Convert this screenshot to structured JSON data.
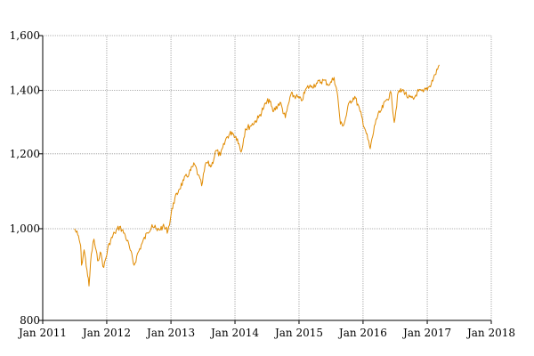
{
  "chart_data": {
    "type": "line",
    "title": "",
    "xlabel": "",
    "ylabel": "",
    "y_scale": "log",
    "ylim": [
      800,
      1600
    ],
    "xlim": [
      "2011-01-01",
      "2018-01-01"
    ],
    "grid": true,
    "colors": {
      "series": "#e08a00",
      "grid": "#999999",
      "axis": "#000000"
    },
    "x_ticks": [
      {
        "date": "2011-01-01",
        "label": "Jan 2011"
      },
      {
        "date": "2012-01-01",
        "label": "Jan 2012"
      },
      {
        "date": "2013-01-01",
        "label": "Jan 2013"
      },
      {
        "date": "2014-01-01",
        "label": "Jan 2014"
      },
      {
        "date": "2015-01-01",
        "label": "Jan 2015"
      },
      {
        "date": "2016-01-01",
        "label": "Jan 2016"
      },
      {
        "date": "2017-01-01",
        "label": "Jan 2017"
      },
      {
        "date": "2018-01-01",
        "label": "Jan 2018"
      }
    ],
    "y_ticks": [
      {
        "value": 800,
        "label": "800"
      },
      {
        "value": 1000,
        "label": "1,000"
      },
      {
        "value": 1200,
        "label": "1,200"
      },
      {
        "value": 1400,
        "label": "1,400"
      },
      {
        "value": 1600,
        "label": "1,600"
      }
    ],
    "series": [
      {
        "x": [
          "2011-07-01",
          "2011-07-20",
          "2011-08-05",
          "2011-08-10",
          "2011-08-25",
          "2011-09-10",
          "2011-09-22",
          "2011-10-05",
          "2011-10-20",
          "2011-11-10",
          "2011-11-25",
          "2011-12-15",
          "2012-01-15",
          "2012-02-15",
          "2012-03-15",
          "2012-04-15",
          "2012-05-10",
          "2012-06-05",
          "2012-06-20",
          "2012-07-20",
          "2012-08-20",
          "2012-09-15",
          "2012-10-15",
          "2012-11-15",
          "2012-12-15",
          "2013-01-15",
          "2013-02-15",
          "2013-03-15",
          "2013-04-15",
          "2013-05-15",
          "2013-06-05",
          "2013-06-25",
          "2013-07-20",
          "2013-08-20",
          "2013-09-15",
          "2013-10-10",
          "2013-11-15",
          "2013-12-15",
          "2014-01-15",
          "2014-02-05",
          "2014-03-01",
          "2014-04-01",
          "2014-05-15",
          "2014-06-15",
          "2014-07-15",
          "2014-08-05",
          "2014-09-15",
          "2014-10-15",
          "2014-11-15",
          "2014-12-15",
          "2015-01-15",
          "2015-02-15",
          "2015-03-15",
          "2015-04-15",
          "2015-05-20",
          "2015-06-25",
          "2015-07-20",
          "2015-08-10",
          "2015-08-25",
          "2015-09-15",
          "2015-10-15",
          "2015-11-15",
          "2015-12-15",
          "2016-01-15",
          "2016-02-11",
          "2016-03-15",
          "2016-04-15",
          "2016-05-15",
          "2016-06-10",
          "2016-06-27",
          "2016-07-20",
          "2016-08-20",
          "2016-09-15",
          "2016-10-15",
          "2016-11-05",
          "2016-12-10",
          "2017-01-15",
          "2017-02-15",
          "2017-03-10"
        ],
        "y": [
          1000,
          985,
          960,
          915,
          950,
          905,
          870,
          940,
          975,
          925,
          945,
          910,
          965,
          990,
          1005,
          985,
          955,
          915,
          935,
          965,
          990,
          1010,
          995,
          1005,
          995,
          1065,
          1100,
          1125,
          1145,
          1170,
          1140,
          1110,
          1175,
          1165,
          1210,
          1195,
          1250,
          1265,
          1245,
          1205,
          1275,
          1285,
          1310,
          1345,
          1370,
          1330,
          1360,
          1310,
          1385,
          1380,
          1365,
          1410,
          1415,
          1425,
          1435,
          1420,
          1445,
          1380,
          1290,
          1290,
          1360,
          1380,
          1330,
          1270,
          1215,
          1305,
          1335,
          1370,
          1390,
          1295,
          1395,
          1400,
          1375,
          1370,
          1395,
          1395,
          1415,
          1455,
          1490
        ]
      }
    ]
  }
}
